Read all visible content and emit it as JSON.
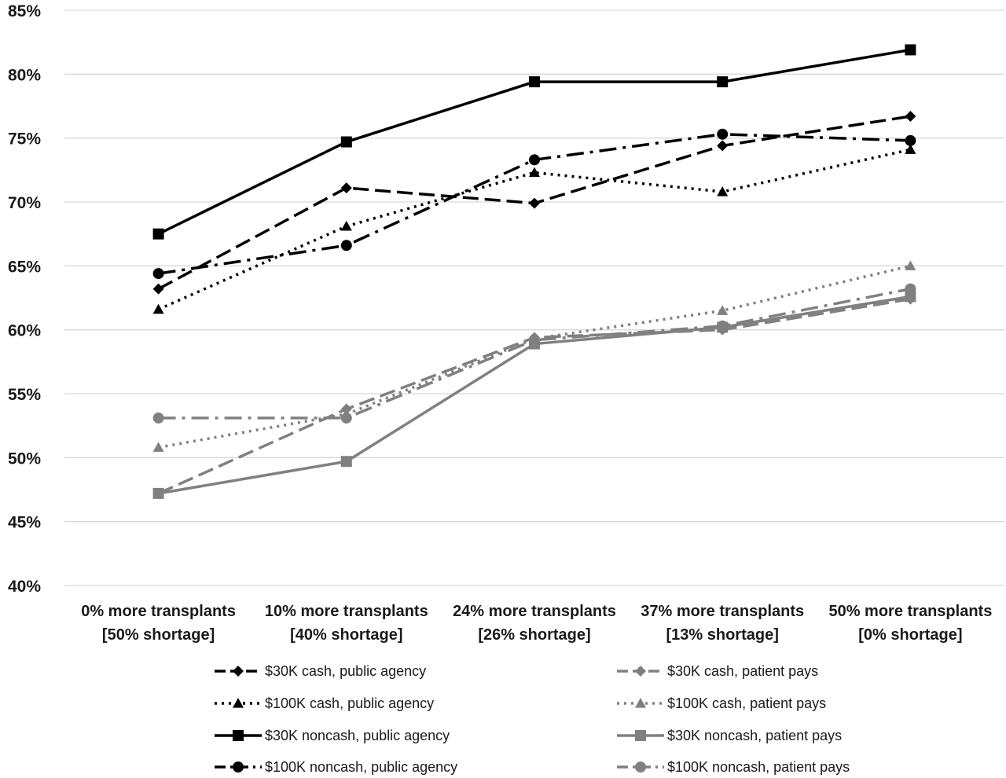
{
  "chart_data": {
    "type": "line",
    "title": "",
    "xlabel": "",
    "ylabel": "",
    "ylim": [
      40,
      85
    ],
    "y_tick_step": 5,
    "y_tick_labels": [
      "40%",
      "45%",
      "50%",
      "55%",
      "60%",
      "65%",
      "70%",
      "75%",
      "80%",
      "85%"
    ],
    "grid": true,
    "legend_position": "bottom",
    "categories": [
      [
        "0% more transplants",
        "[50% shortage]"
      ],
      [
        "10% more transplants",
        "[40% shortage]"
      ],
      [
        "24% more transplants",
        "[26% shortage]"
      ],
      [
        "37% more transplants",
        "[13% shortage]"
      ],
      [
        "50% more transplants",
        "[0% shortage]"
      ]
    ],
    "series": [
      {
        "name": "$30K cash, public agency",
        "values": [
          63.2,
          71.1,
          69.9,
          74.4,
          76.7
        ],
        "color": "#000000",
        "line": "dash",
        "marker": "diamond"
      },
      {
        "name": "$100K cash, public agency",
        "values": [
          61.6,
          68.1,
          72.3,
          70.8,
          74.1
        ],
        "color": "#000000",
        "line": "dot",
        "marker": "triangle"
      },
      {
        "name": "$30K noncash, public agency",
        "values": [
          67.5,
          74.7,
          79.4,
          79.4,
          81.9
        ],
        "color": "#000000",
        "line": "solid",
        "marker": "square"
      },
      {
        "name": "$100K noncash, public agency",
        "values": [
          64.4,
          66.6,
          73.3,
          75.3,
          74.8
        ],
        "color": "#000000",
        "line": "dashdot",
        "marker": "circle"
      },
      {
        "name": "$30K cash, patient pays",
        "values": [
          47.2,
          53.8,
          59.4,
          60.0,
          62.4
        ],
        "color": "#808080",
        "line": "dash",
        "marker": "diamond"
      },
      {
        "name": "$100K cash, patient pays",
        "values": [
          50.8,
          53.4,
          59.3,
          61.5,
          65.0
        ],
        "color": "#808080",
        "line": "dot",
        "marker": "triangle"
      },
      {
        "name": "$30K noncash, patient pays",
        "values": [
          47.2,
          49.7,
          58.9,
          60.2,
          62.6
        ],
        "color": "#808080",
        "line": "solid",
        "marker": "square"
      },
      {
        "name": "$100K noncash, patient pays",
        "values": [
          53.1,
          53.1,
          59.2,
          60.3,
          63.2
        ],
        "color": "#808080",
        "line": "dashdot",
        "marker": "circle"
      }
    ]
  }
}
